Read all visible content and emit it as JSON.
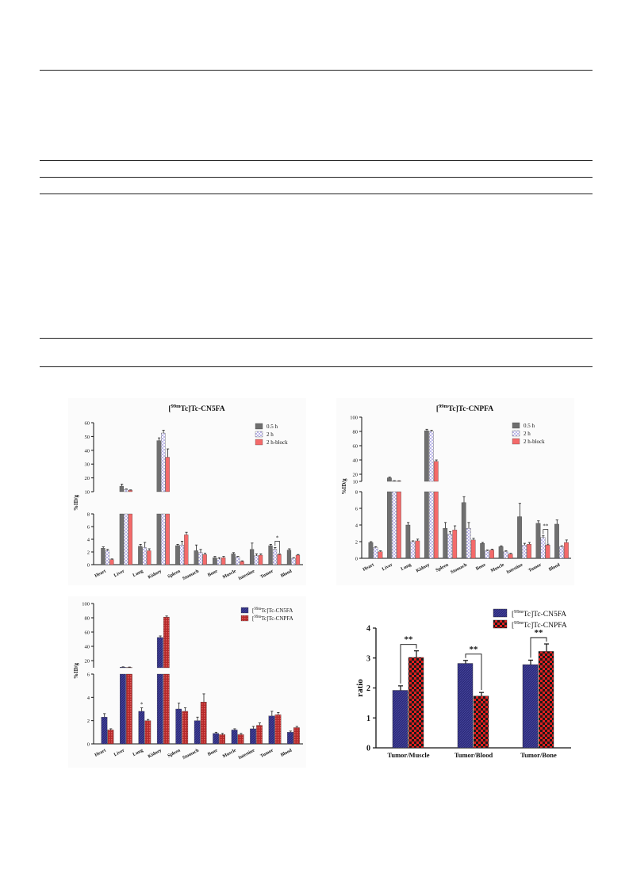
{
  "colors": {
    "grey": "#6f6f6f",
    "lavender": "#b9b4e8",
    "salmon": "#f46a6a",
    "navy": "#2b2a7a",
    "darkred": "#b42a2a",
    "checkred": "#e02020"
  },
  "chart_data": [
    {
      "id": "A",
      "type": "bar",
      "title_sup": "99m",
      "title_rest": "Tc]Tc-CN5FA",
      "ylabel": "%ID/g",
      "categories": [
        "Heart",
        "Liver",
        "Lung",
        "Kidney",
        "Spleen",
        "Stomach",
        "Bone",
        "Muscle",
        "Intestine",
        "Tumor",
        "Blood"
      ],
      "lower_ylim": [
        0,
        8
      ],
      "lower_ticks": [
        0,
        2,
        4,
        6,
        8
      ],
      "upper_ylim": [
        10,
        60
      ],
      "upper_ticks": [
        10,
        20,
        30,
        40,
        50,
        60
      ],
      "legend_placement": "top-right",
      "series": [
        {
          "name": "0.5 h",
          "values": [
            2.6,
            14.0,
            2.9,
            47.0,
            3.0,
            2.2,
            1.1,
            1.7,
            2.4,
            3.0,
            2.3
          ],
          "errors": [
            0.2,
            1.5,
            0.3,
            2.0,
            0.2,
            0.9,
            0.2,
            0.2,
            1.0,
            0.2,
            0.2
          ]
        },
        {
          "name": "2 h",
          "values": [
            2.2,
            11.5,
            2.7,
            52.5,
            3.1,
            1.9,
            0.9,
            1.2,
            1.4,
            2.4,
            1.0
          ],
          "errors": [
            0.2,
            0.5,
            0.8,
            2.0,
            0.6,
            0.5,
            0.2,
            0.1,
            0.3,
            0.3,
            0.1
          ]
        },
        {
          "name": "2 h-block",
          "values": [
            0.8,
            11.0,
            2.2,
            35.0,
            4.7,
            1.6,
            1.1,
            0.5,
            1.5,
            1.6,
            1.5
          ],
          "errors": [
            0.1,
            0.3,
            0.3,
            6.0,
            0.4,
            0.2,
            0.2,
            0.1,
            0.2,
            0.1,
            0.1
          ]
        }
      ],
      "annotations": [
        {
          "text": "*",
          "category": "Tumor",
          "between": [
            1,
            2
          ]
        }
      ]
    },
    {
      "id": "B",
      "type": "bar",
      "title_sup": "99m",
      "title_rest": "Tc]Tc-CNPFA",
      "ylabel": "%ID/g",
      "categories": [
        "Heart",
        "Liver",
        "Lung",
        "Kidney",
        "Spleen",
        "Stomach",
        "Bone",
        "Muscle",
        "Intestine",
        "Tumor",
        "Blood"
      ],
      "lower_ylim": [
        0,
        8
      ],
      "lower_ticks": [
        0,
        2,
        4,
        6,
        8
      ],
      "upper_ylim": [
        10,
        100
      ],
      "upper_ticks": [
        10,
        20,
        40,
        60,
        80,
        100
      ],
      "legend_placement": "top-right",
      "series": [
        {
          "name": "0.5 h",
          "values": [
            1.9,
            15.0,
            4.0,
            81.0,
            3.6,
            6.7,
            1.8,
            1.4,
            5.0,
            4.2,
            4.1
          ],
          "errors": [
            0.1,
            1.0,
            0.3,
            2.0,
            0.7,
            0.7,
            0.1,
            0.1,
            1.6,
            0.3,
            0.5
          ]
        },
        {
          "name": "2 h",
          "values": [
            1.3,
            10.5,
            2.0,
            80.0,
            2.9,
            3.6,
            0.9,
            0.8,
            1.6,
            2.5,
            1.4
          ],
          "errors": [
            0.1,
            0.5,
            0.1,
            1.5,
            0.3,
            0.7,
            0.1,
            0.1,
            0.2,
            0.2,
            0.1
          ]
        },
        {
          "name": "2 h-block",
          "values": [
            0.8,
            10.5,
            2.1,
            38.0,
            3.4,
            2.2,
            1.0,
            0.5,
            1.7,
            1.6,
            1.9
          ],
          "errors": [
            0.1,
            0.3,
            0.2,
            2.0,
            0.5,
            0.2,
            0.1,
            0.1,
            0.2,
            0.1,
            0.3
          ]
        }
      ],
      "annotations": [
        {
          "text": "**",
          "category": "Tumor",
          "between": [
            1,
            2
          ]
        }
      ]
    },
    {
      "id": "C",
      "type": "bar",
      "ylabel": "%ID/g",
      "categories": [
        "Heart",
        "Liver",
        "Lung",
        "Kidney",
        "Spleen",
        "Stomach",
        "Bone",
        "Muscle",
        "Intestine",
        "Tumor",
        "Blood"
      ],
      "lower_ylim": [
        0,
        6
      ],
      "lower_ticks": [
        0,
        2,
        4,
        6
      ],
      "upper_ylim": [
        10,
        100
      ],
      "upper_ticks": [
        20,
        40,
        60,
        80,
        100
      ],
      "legend_placement": "top-right",
      "series": [
        {
          "name_sup": "99m",
          "name_rest": "Tc]Tc-CN5FA",
          "values": [
            2.3,
            10.8,
            2.8,
            52.5,
            3.0,
            2.0,
            0.9,
            1.2,
            1.3,
            2.4,
            1.0
          ],
          "errors": [
            0.3,
            0.5,
            0.3,
            2.0,
            0.5,
            0.3,
            0.1,
            0.1,
            0.2,
            0.4,
            0.1
          ]
        },
        {
          "name_sup": "99m",
          "name_rest": "Tc]Tc-CNPFA",
          "values": [
            1.2,
            10.5,
            2.0,
            81.0,
            2.8,
            3.6,
            0.8,
            0.8,
            1.6,
            2.5,
            1.4
          ],
          "errors": [
            0.1,
            0.5,
            0.1,
            1.5,
            0.3,
            0.7,
            0.1,
            0.1,
            0.2,
            0.2,
            0.1
          ]
        }
      ],
      "annotations": [
        {
          "text": "*",
          "category": "Lung",
          "series": 0
        }
      ]
    },
    {
      "id": "D",
      "type": "bar",
      "ylabel": "ratio",
      "categories": [
        "Tumor/Muscle",
        "Tumor/Blood",
        "Tumor/Bone"
      ],
      "ylim": [
        0,
        4
      ],
      "ticks": [
        0,
        1,
        2,
        3,
        4
      ],
      "legend_placement": "top-right",
      "series": [
        {
          "name_sup": "99m",
          "name_rest": "Tc]Tc-CN5FA",
          "values": [
            1.92,
            2.82,
            2.78
          ],
          "errors": [
            0.15,
            0.1,
            0.15
          ]
        },
        {
          "name_sup": "99m",
          "name_rest": "Tc]Tc-CNPFA",
          "values": [
            3.02,
            1.73,
            3.22
          ],
          "errors": [
            0.22,
            0.12,
            0.25
          ]
        }
      ],
      "annotations": [
        {
          "text": "**",
          "category": "Tumor/Muscle"
        },
        {
          "text": "**",
          "category": "Tumor/Blood"
        },
        {
          "text": "**",
          "category": "Tumor/Bone"
        }
      ]
    }
  ]
}
